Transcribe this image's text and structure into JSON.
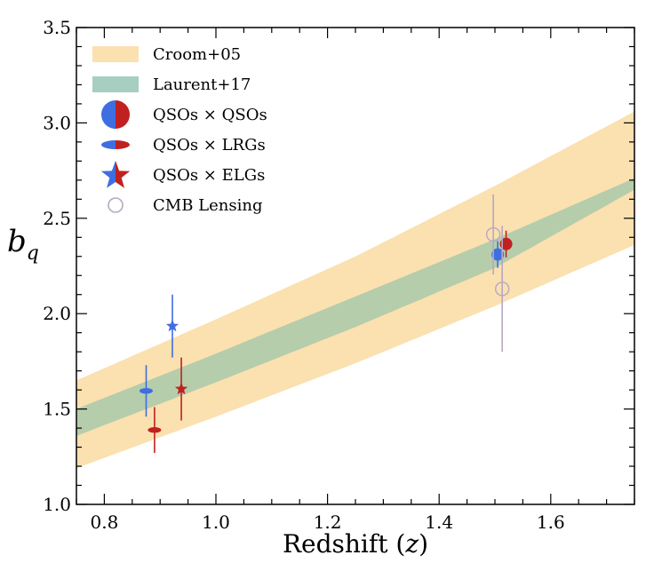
{
  "chart_data": {
    "type": "scatter",
    "title": "",
    "xlabel": "Redshift (z)",
    "ylabel": "b_q",
    "xlim": [
      0.75,
      1.75
    ],
    "ylim": [
      1.0,
      3.5
    ],
    "x_ticks": [
      "0.8",
      "1.0",
      "1.2",
      "1.4",
      "1.6"
    ],
    "y_ticks": [
      "1.0",
      "1.5",
      "2.0",
      "2.5",
      "3.0",
      "3.5"
    ],
    "grid": false,
    "legend_position": "top-left",
    "colors": {
      "croom_band": "#fbe0b0",
      "laurent_band": "#a6cfc2",
      "overlap_band": "#b6c89a",
      "blue": "#3f6ee0",
      "red": "#c02020",
      "cmb": "#b8a8c0"
    },
    "bands": [
      {
        "name": "Croom+05",
        "x": [
          0.75,
          1.0,
          1.25,
          1.5,
          1.75
        ],
        "lower": [
          1.19,
          1.46,
          1.74,
          2.04,
          2.36
        ],
        "upper": [
          1.65,
          1.97,
          2.3,
          2.67,
          3.06
        ]
      },
      {
        "name": "Laurent+17",
        "x": [
          0.75,
          1.0,
          1.25,
          1.5,
          1.75
        ],
        "lower": [
          1.36,
          1.64,
          1.93,
          2.24,
          2.65
        ],
        "upper": [
          1.5,
          1.79,
          2.09,
          2.39,
          2.71
        ]
      }
    ],
    "series": [
      {
        "name": "QSOs × QSOs",
        "marker": "circle",
        "points": [
          {
            "x": 1.505,
            "y": 2.31,
            "yerr": 0.07,
            "color": "blue"
          },
          {
            "x": 1.52,
            "y": 2.365,
            "yerr": 0.07,
            "color": "red"
          }
        ]
      },
      {
        "name": "QSOs × LRGs",
        "marker": "ellipse",
        "points": [
          {
            "x": 0.875,
            "y": 1.595,
            "yerr": 0.135,
            "color": "blue"
          },
          {
            "x": 0.89,
            "y": 1.39,
            "yerr": 0.12,
            "color": "red"
          }
        ]
      },
      {
        "name": "QSOs × ELGs",
        "marker": "star",
        "points": [
          {
            "x": 0.922,
            "y": 1.935,
            "yerr": 0.165,
            "color": "blue"
          },
          {
            "x": 0.938,
            "y": 1.605,
            "yerr": 0.165,
            "color": "red"
          }
        ]
      },
      {
        "name": "CMB Lensing",
        "marker": "open-circle",
        "points": [
          {
            "x": 1.497,
            "y": 2.415,
            "yerr": 0.21,
            "color": "cmb"
          },
          {
            "x": 1.513,
            "y": 2.13,
            "yerr": 0.33,
            "color": "cmb"
          }
        ]
      }
    ],
    "legend": [
      {
        "label": "Croom+05",
        "icon": "band-orange"
      },
      {
        "label": "Laurent+17",
        "icon": "band-teal"
      },
      {
        "label": "QSOs × QSOs",
        "icon": "split-circle"
      },
      {
        "label": "QSOs × LRGs",
        "icon": "split-ellipse"
      },
      {
        "label": "QSOs × ELGs",
        "icon": "split-star"
      },
      {
        "label": "CMB Lensing",
        "icon": "open-circle"
      }
    ]
  }
}
